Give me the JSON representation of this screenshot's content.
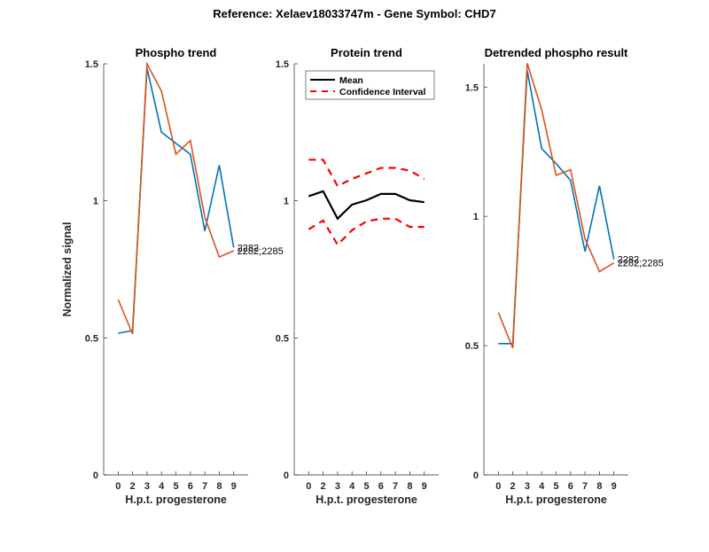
{
  "chart_data": {
    "type": "line",
    "title": "Reference:  Xelaev18033747m - Gene Symbol:  CHD7",
    "panels": [
      {
        "id": "phospho",
        "title": "Phospho trend",
        "xlabel": "H.p.t. progesterone",
        "ylabel": "Normalized signal",
        "x_tick_labels": [
          "0",
          "2",
          "3",
          "4",
          "5",
          "6",
          "7",
          "8",
          "9"
        ],
        "y_ticks": [
          0,
          0.5,
          1,
          1.5
        ],
        "y_tick_labels": [
          "0",
          "0.5",
          "1",
          "1.5"
        ],
        "ylim": [
          0,
          1.5
        ],
        "series": [
          {
            "name": "2282",
            "color": "#0072BD",
            "dash": "solid",
            "values": [
              0.517,
              0.527,
              1.484,
              1.25,
              1.21,
              1.17,
              0.89,
              1.13,
              0.83
            ]
          },
          {
            "name": "2282;2285",
            "color": "#D95319",
            "dash": "solid",
            "values": [
              0.64,
              0.514,
              1.5,
              1.4,
              1.17,
              1.22,
              0.94,
              0.795,
              0.818
            ]
          }
        ],
        "end_labels": [
          "2282",
          "2282;2285"
        ]
      },
      {
        "id": "protein",
        "title": "Protein trend",
        "xlabel": "H.p.t. progesterone",
        "ylabel": "",
        "x_tick_labels": [
          "0",
          "2",
          "3",
          "4",
          "5",
          "6",
          "7",
          "8",
          "9"
        ],
        "y_ticks": [
          0,
          0.5,
          1,
          1.5
        ],
        "y_tick_labels": [
          "0",
          "0.5",
          "1",
          "1.5"
        ],
        "ylim": [
          0,
          1.5
        ],
        "legend": {
          "position": "top-left",
          "entries": [
            "Mean",
            "Confidence Interval"
          ]
        },
        "series": [
          {
            "name": "Mean",
            "color": "#000000",
            "dash": "solid",
            "values": [
              1.017,
              1.035,
              0.935,
              0.986,
              1.002,
              1.025,
              1.025,
              1.002,
              0.995
            ]
          },
          {
            "name": "Confidence Interval (upper)",
            "color": "#FF0000",
            "dash": "dashed",
            "values": [
              1.15,
              1.15,
              1.054,
              1.08,
              1.1,
              1.12,
              1.12,
              1.11,
              1.08
            ]
          },
          {
            "name": "Confidence Interval (lower)",
            "color": "#FF0000",
            "dash": "dashed",
            "values": [
              0.896,
              0.928,
              0.84,
              0.893,
              0.925,
              0.935,
              0.935,
              0.905,
              0.905
            ]
          }
        ]
      },
      {
        "id": "detrended",
        "title": "Detrended phospho result",
        "xlabel": "H.p.t. progesterone",
        "ylabel": "",
        "x_tick_labels": [
          "0",
          "2",
          "3",
          "4",
          "5",
          "6",
          "7",
          "8",
          "9"
        ],
        "y_ticks": [
          0,
          0.5,
          1,
          1.5
        ],
        "y_tick_labels": [
          "0",
          "0.5",
          "1",
          "1.5"
        ],
        "ylim": [
          0,
          1.59
        ],
        "series": [
          {
            "name": "2282",
            "color": "#0072BD",
            "dash": "solid",
            "values": [
              0.508,
              0.508,
              1.564,
              1.262,
              1.204,
              1.139,
              0.864,
              1.118,
              0.834
            ]
          },
          {
            "name": "2282;2285",
            "color": "#D95319",
            "dash": "solid",
            "values": [
              0.628,
              0.49,
              1.592,
              1.413,
              1.159,
              1.18,
              0.913,
              0.786,
              0.82
            ]
          }
        ],
        "end_labels": [
          "2282",
          "2282;2285"
        ]
      }
    ]
  }
}
